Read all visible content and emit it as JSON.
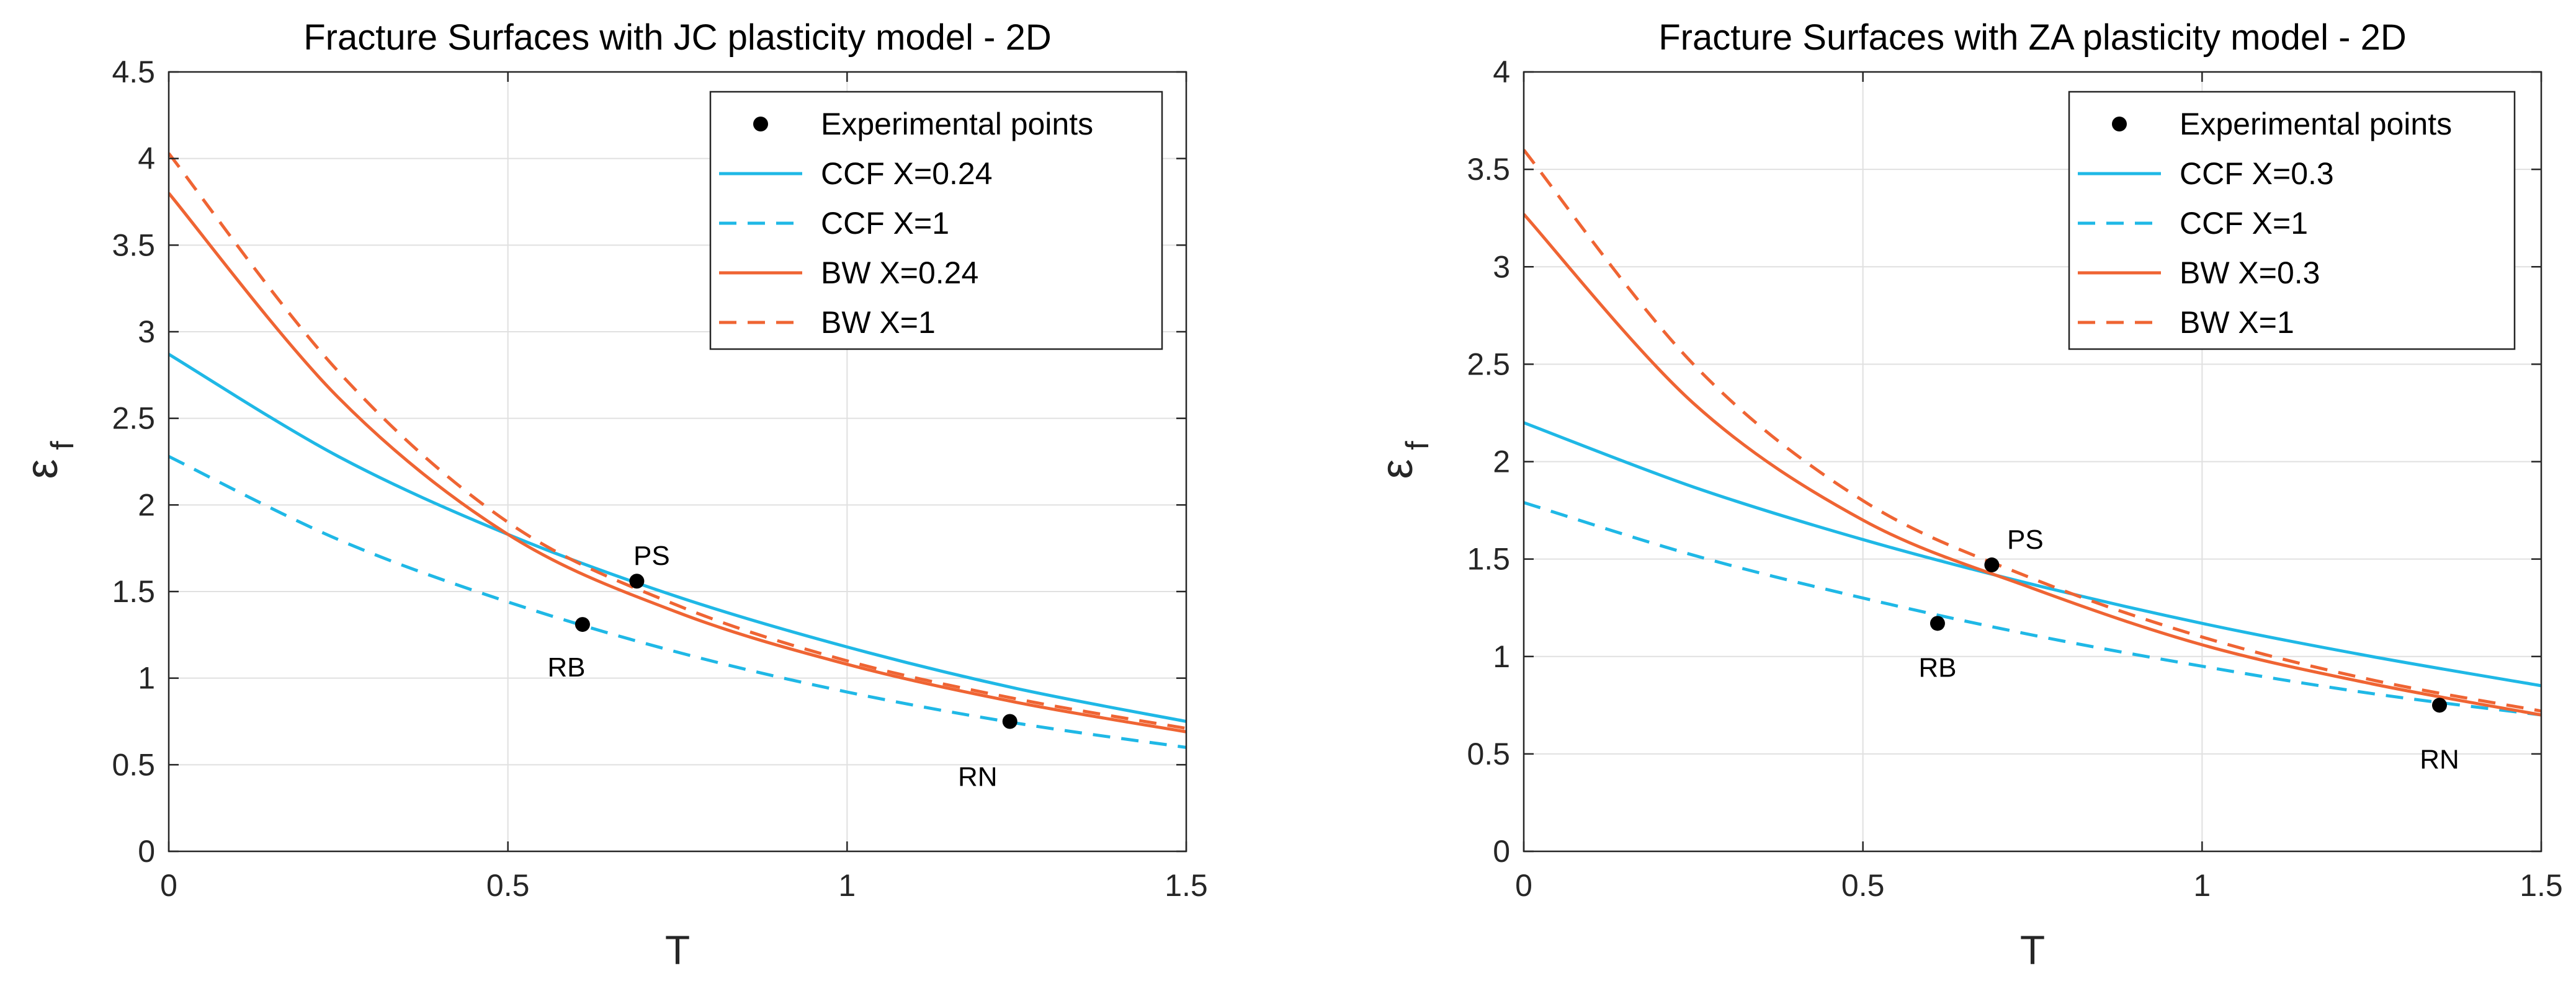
{
  "figure": {
    "colors": {
      "ccf": "#1fb8e6",
      "bw": "#ef6433",
      "grid": "#e0e0e0",
      "axis": "#262626",
      "point": "#000000"
    }
  },
  "chart_data": [
    {
      "type": "line",
      "title": "Fracture Surfaces with JC plasticity model - 2D",
      "xlabel": "T",
      "ylabel": "ε",
      "ylabel_sub": "f",
      "xlim": [
        0,
        1.5
      ],
      "ylim": [
        0,
        4.5
      ],
      "xticks": [
        0,
        0.5,
        1,
        1.5
      ],
      "xtick_labels": [
        "0",
        "0.5",
        "1",
        "1.5"
      ],
      "yticks": [
        0,
        0.5,
        1,
        1.5,
        2,
        2.5,
        3,
        3.5,
        4,
        4.5
      ],
      "ytick_labels": [
        "0",
        "0.5",
        "1",
        "1.5",
        "2",
        "2.5",
        "3",
        "3.5",
        "4",
        "4.5"
      ],
      "grid": true,
      "legend_position": "top-right",
      "legend": [
        "Experimental points",
        "CCF X=0.24",
        "CCF X=1",
        "BW X=0.24",
        "BW X=1"
      ],
      "series": [
        {
          "name": "CCF X=0.24",
          "style": "solid",
          "color": "ccf",
          "x": [
            0,
            0.25,
            0.5,
            0.75,
            1.0,
            1.25,
            1.5
          ],
          "y": [
            2.87,
            2.28,
            1.83,
            1.47,
            1.18,
            0.94,
            0.75
          ]
        },
        {
          "name": "CCF X=1",
          "style": "dashed",
          "color": "ccf",
          "x": [
            0,
            0.25,
            0.5,
            0.75,
            1.0,
            1.25,
            1.5
          ],
          "y": [
            2.28,
            1.8,
            1.44,
            1.15,
            0.92,
            0.74,
            0.6
          ]
        },
        {
          "name": "BW X=0.24",
          "style": "solid",
          "color": "bw",
          "x": [
            0,
            0.25,
            0.5,
            0.75,
            1.0,
            1.25,
            1.5
          ],
          "y": [
            3.8,
            2.62,
            1.83,
            1.38,
            1.08,
            0.86,
            0.69
          ]
        },
        {
          "name": "BW X=1",
          "style": "dashed",
          "color": "bw",
          "x": [
            0,
            0.25,
            0.5,
            0.75,
            1.0,
            1.25,
            1.5
          ],
          "y": [
            4.03,
            2.77,
            1.9,
            1.42,
            1.1,
            0.88,
            0.71
          ]
        }
      ],
      "points": [
        {
          "label": "PS",
          "x": 0.69,
          "y": 1.56
        },
        {
          "label": "RB",
          "x": 0.61,
          "y": 1.31
        },
        {
          "label": "RN",
          "x": 1.24,
          "y": 0.75
        }
      ]
    },
    {
      "type": "line",
      "title": "Fracture Surfaces with ZA plasticity model - 2D",
      "xlabel": "T",
      "ylabel": "ε",
      "ylabel_sub": "f",
      "xlim": [
        0,
        1.5
      ],
      "ylim": [
        0,
        4
      ],
      "xticks": [
        0,
        0.5,
        1,
        1.5
      ],
      "xtick_labels": [
        "0",
        "0.5",
        "1",
        "1.5"
      ],
      "yticks": [
        0,
        0.5,
        1,
        1.5,
        2,
        2.5,
        3,
        3.5,
        4
      ],
      "ytick_labels": [
        "0",
        "0.5",
        "1",
        "1.5",
        "2",
        "2.5",
        "3",
        "3.5",
        "4"
      ],
      "grid": true,
      "legend_position": "top-right",
      "legend": [
        "Experimental points",
        "CCF X=0.3",
        "CCF X=1",
        "BW X=0.3",
        "BW X=1"
      ],
      "series": [
        {
          "name": "CCF X=0.3",
          "style": "solid",
          "color": "ccf",
          "x": [
            0,
            0.25,
            0.5,
            0.75,
            1.0,
            1.25,
            1.5
          ],
          "y": [
            2.2,
            1.87,
            1.6,
            1.37,
            1.17,
            1.0,
            0.85
          ]
        },
        {
          "name": "CCF X=1",
          "style": "dashed",
          "color": "ccf",
          "x": [
            0,
            0.25,
            0.5,
            0.75,
            1.0,
            1.25,
            1.5
          ],
          "y": [
            1.79,
            1.52,
            1.3,
            1.11,
            0.95,
            0.81,
            0.7
          ]
        },
        {
          "name": "BW X=0.3",
          "style": "solid",
          "color": "bw",
          "x": [
            0,
            0.25,
            0.5,
            0.75,
            1.0,
            1.25,
            1.5
          ],
          "y": [
            3.27,
            2.3,
            1.7,
            1.35,
            1.06,
            0.86,
            0.7
          ]
        },
        {
          "name": "BW X=1",
          "style": "dashed",
          "color": "bw",
          "x": [
            0,
            0.25,
            0.5,
            0.75,
            1.0,
            1.25,
            1.5
          ],
          "y": [
            3.6,
            2.5,
            1.8,
            1.4,
            1.1,
            0.88,
            0.72
          ]
        }
      ],
      "points": [
        {
          "label": "PS",
          "x": 0.69,
          "y": 1.47
        },
        {
          "label": "RB",
          "x": 0.61,
          "y": 1.17
        },
        {
          "label": "RN",
          "x": 1.35,
          "y": 0.75
        }
      ]
    }
  ]
}
